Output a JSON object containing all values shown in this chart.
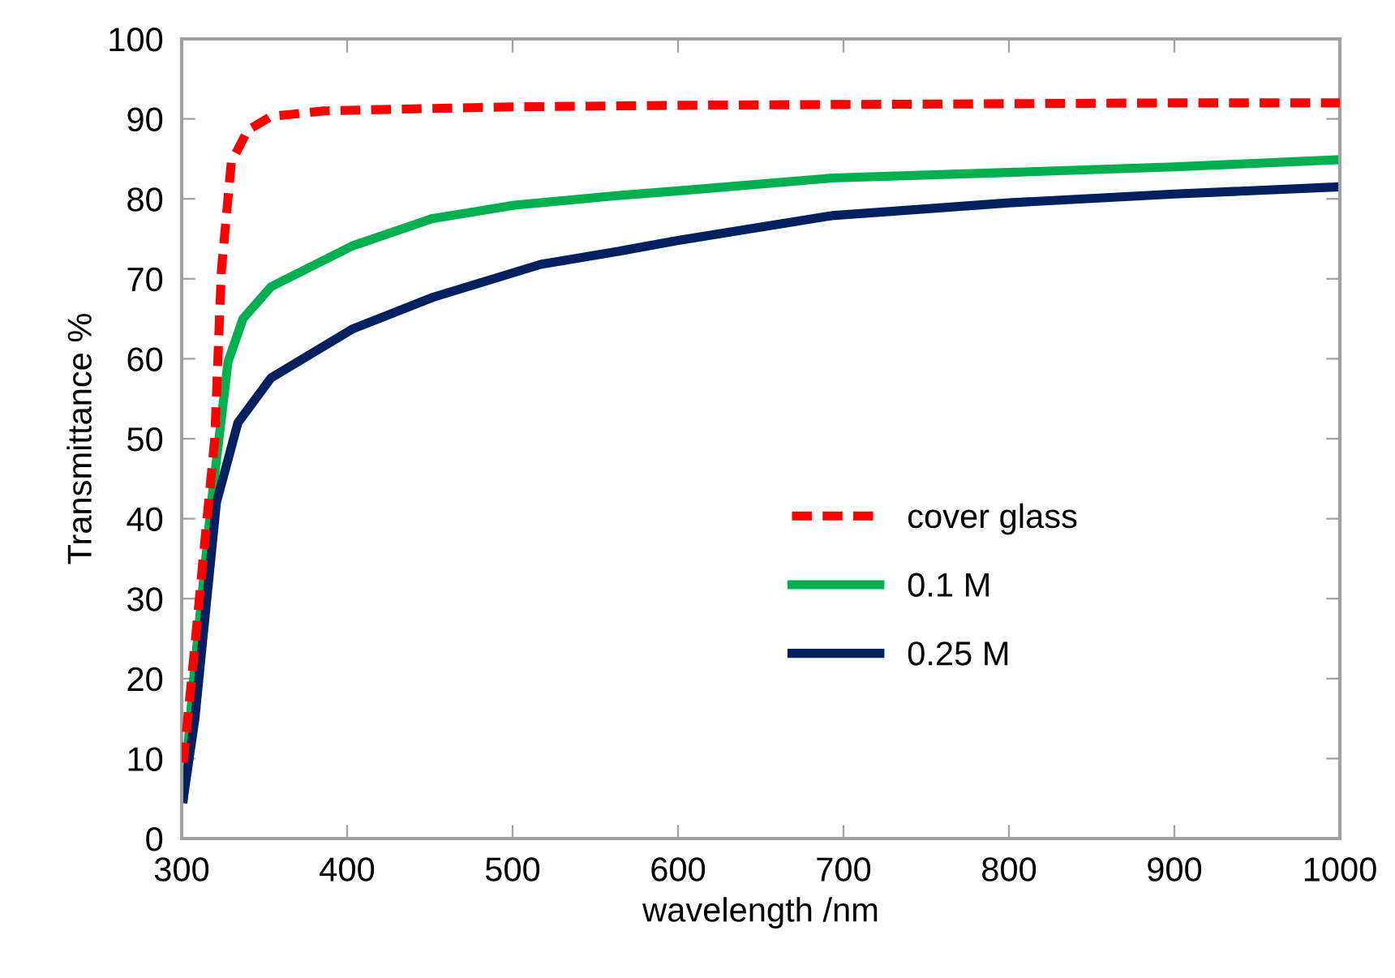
{
  "chart_data": {
    "type": "line",
    "xlabel": "wavelength /nm",
    "ylabel": "Transmittance %",
    "xlim": [
      300,
      1000
    ],
    "xticks": [
      300,
      400,
      500,
      600,
      700,
      800,
      900,
      1000
    ],
    "ylim": [
      0,
      100
    ],
    "yticks": [
      0,
      10,
      20,
      30,
      40,
      50,
      60,
      70,
      80,
      90,
      100
    ],
    "grid": false,
    "legend": "bottom right",
    "marker": "none",
    "series": [
      {
        "name": "cover glass",
        "color": "#ff0000",
        "line_style": "dashed",
        "x": [
          301,
          307,
          313,
          320,
          324,
          330,
          340,
          354,
          386,
          450,
          500,
          600,
          700,
          800,
          900,
          1000
        ],
        "values": [
          9.5,
          22,
          35,
          50,
          71,
          84.6,
          88.6,
          90.3,
          91,
          91.3,
          91.5,
          91.7,
          91.8,
          91.9,
          92,
          92
        ]
      },
      {
        "name": "0.1 M",
        "color": "#00b050",
        "line_style": "solid",
        "x": [
          301,
          308,
          318,
          328,
          337,
          354,
          403,
          451,
          501,
          563,
          600,
          693,
          800,
          900,
          1000
        ],
        "values": [
          5,
          21.7,
          42,
          59.6,
          65,
          69,
          74.1,
          77.5,
          79.2,
          80.4,
          81,
          82.6,
          83.3,
          84,
          84.9
        ]
      },
      {
        "name": "0.25 M",
        "color": "#002060",
        "line_style": "solid",
        "x": [
          301,
          308,
          321,
          334,
          354,
          403,
          452,
          517,
          563,
          600,
          693,
          800,
          900,
          1000
        ],
        "values": [
          5,
          15,
          42,
          52,
          57.6,
          63.7,
          67.7,
          71.8,
          73.4,
          74.8,
          77.9,
          79.5,
          80.6,
          81.5
        ]
      }
    ]
  }
}
